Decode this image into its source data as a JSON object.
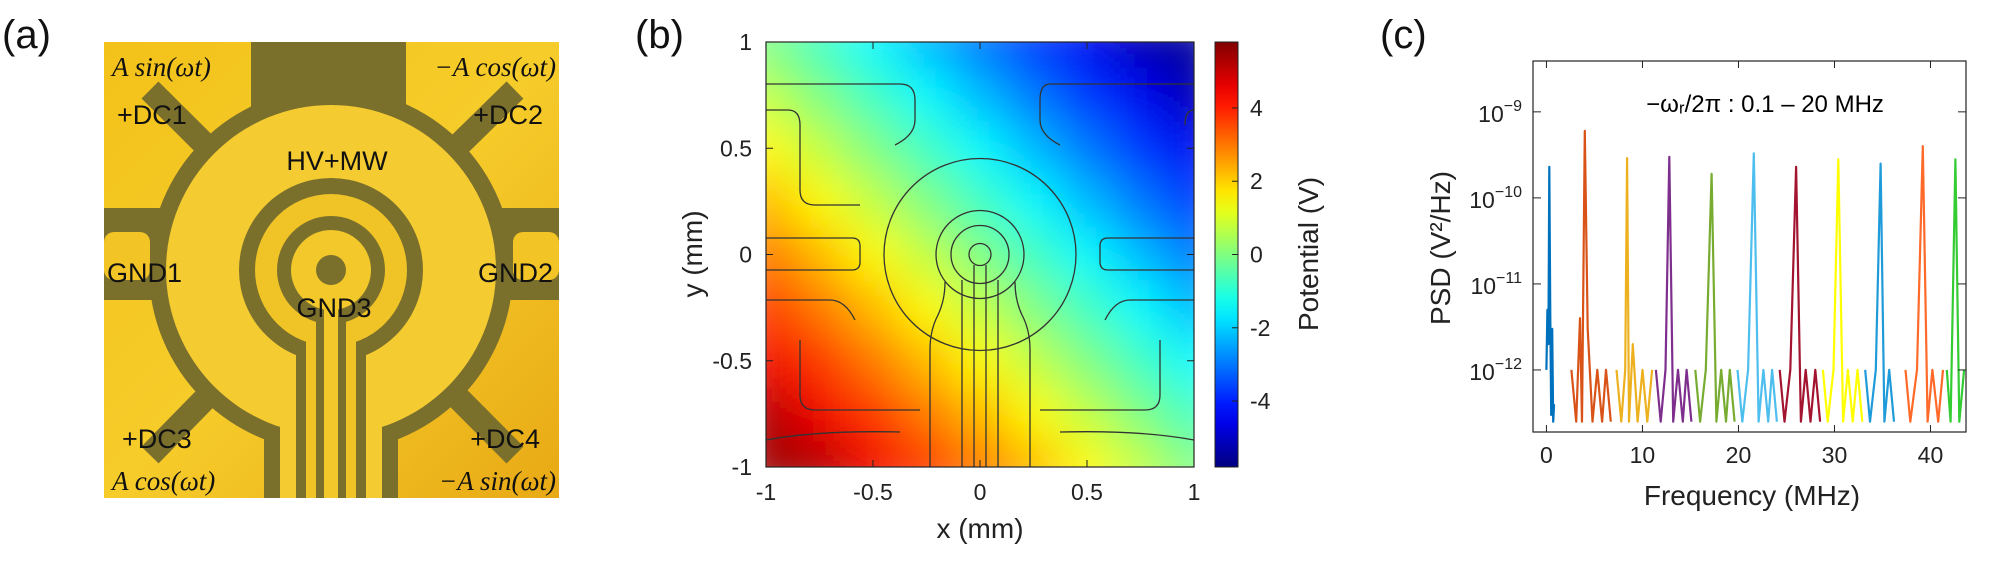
{
  "panel_labels": [
    "(a)",
    "(b)",
    "(c)"
  ],
  "photo": {
    "labels": [
      "A sin(ωt)",
      "−A cos(ωt)",
      "+DC1",
      "+DC2",
      "HV+MW",
      "GND1",
      "GND2",
      "GND3",
      "+DC3",
      "+DC4",
      "A cos(ωt)",
      "−A sin(ωt)"
    ]
  },
  "chart_data": [
    {
      "type": "heatmap",
      "xlabel": "x (mm)",
      "ylabel": "y (mm)",
      "x": [
        -1,
        -0.75,
        -0.5,
        -0.25,
        0,
        0.25,
        0.5,
        0.75,
        1
      ],
      "y": [
        1,
        0.75,
        0.5,
        0.25,
        0,
        -0.25,
        -0.5,
        -0.75,
        -1
      ],
      "z": [
        [
          0,
          -0.75,
          -1.5,
          -2.25,
          -3,
          -3.75,
          -4.5,
          -5.25,
          -5.5
        ],
        [
          0.75,
          0,
          -0.75,
          -1.5,
          -2.25,
          -3,
          -3.75,
          -4.5,
          -5.25
        ],
        [
          1.5,
          0.75,
          0,
          -0.75,
          -1.5,
          -2.25,
          -3,
          -3.75,
          -4.5
        ],
        [
          2.25,
          1.5,
          0.75,
          0,
          -0.75,
          -1.5,
          -2.25,
          -3,
          -3.75
        ],
        [
          3,
          2.25,
          1.5,
          0.75,
          0,
          -0.75,
          -1.5,
          -2.25,
          -3
        ],
        [
          3.75,
          3,
          2.25,
          1.5,
          0.75,
          0,
          -0.75,
          -1.5,
          -2.25
        ],
        [
          4.5,
          3.75,
          3,
          2.25,
          1.5,
          0.75,
          0,
          -0.75,
          -1.5
        ],
        [
          5.25,
          4.5,
          3.75,
          3,
          2.25,
          1.5,
          0.75,
          0,
          -0.75
        ],
        [
          5.5,
          5.25,
          4.5,
          3.75,
          3,
          2.25,
          1.5,
          0.75,
          0
        ]
      ],
      "xlim": [
        -1,
        1
      ],
      "ylim": [
        -1,
        1
      ],
      "xticks": [
        -1,
        -0.5,
        0,
        0.5,
        1
      ],
      "yticks": [
        -1,
        -0.5,
        0,
        0.5,
        1
      ],
      "colorbar": {
        "label": "Potential (V)",
        "clim": [
          -5.8,
          5.8
        ],
        "ticks": [
          -4,
          -2,
          0,
          2,
          4
        ],
        "colormap": "jet"
      }
    },
    {
      "type": "line",
      "xlabel": "Frequency (MHz)",
      "ylabel": "PSD (V²/Hz)",
      "annotation": "−ωᵣ/2π : 0.1 – 20 MHz",
      "log_y": true,
      "xlim": [
        -1.4,
        43.7
      ],
      "ylim": [
        1.9e-13,
        3.9e-09
      ],
      "xticks": [
        0,
        10,
        20,
        30,
        40
      ],
      "yticks": [
        {
          "value": 1e-12,
          "label": "10",
          "exponent": "−12"
        },
        {
          "value": 1e-11,
          "label": "10",
          "exponent": "−11"
        },
        {
          "value": 1e-10,
          "label": "10",
          "exponent": "−10"
        },
        {
          "value": 1e-09,
          "label": "10",
          "exponent": "−9"
        }
      ],
      "series": [
        {
          "color": "#0072BD",
          "x": [
            0,
            0.1,
            0.2,
            0.3,
            0.4,
            0.5,
            0.6,
            0.7,
            0.8
          ],
          "values": [
            1e-12,
            5e-12,
            2e-12,
            2.3e-10,
            4e-12,
            3e-13,
            3e-12,
            2.5e-13,
            4e-13
          ]
        },
        {
          "color": "#D95319",
          "x": [
            2.6,
            3.1,
            3.5,
            3.7,
            4.0,
            4.3,
            4.8,
            5.3,
            5.8,
            6.2,
            6.7
          ],
          "values": [
            1e-12,
            2.5e-13,
            4e-12,
            2.5e-13,
            6e-10,
            3e-12,
            2.5e-13,
            1e-12,
            2.5e-13,
            1e-12,
            2.5e-13
          ]
        },
        {
          "color": "#EDB120",
          "x": [
            7.3,
            7.8,
            8.2,
            8.4,
            8.6,
            9.0,
            9.5,
            10,
            10.5,
            11
          ],
          "values": [
            1e-12,
            2.5e-13,
            1e-12,
            2.9e-10,
            2.5e-13,
            2e-12,
            2.5e-13,
            1e-12,
            2.5e-13,
            1e-12
          ]
        },
        {
          "color": "#7E2F8E",
          "x": [
            11.4,
            11.9,
            12.4,
            12.8,
            13.2,
            13.7,
            14.2,
            14.6,
            15.1
          ],
          "values": [
            1e-12,
            2.5e-13,
            1e-12,
            3e-10,
            2.5e-13,
            1e-12,
            2.5e-13,
            1e-12,
            2.5e-13
          ]
        },
        {
          "color": "#77AC30",
          "x": [
            15.5,
            16,
            16.6,
            17.2,
            17.7,
            18.2,
            18.7,
            19.1,
            19.6
          ],
          "values": [
            1e-12,
            2.5e-13,
            1e-12,
            1.9e-10,
            2.5e-13,
            1e-12,
            2.5e-13,
            1e-12,
            2.5e-13
          ]
        },
        {
          "color": "#4DBEEE",
          "x": [
            19.9,
            20.4,
            21,
            21.6,
            22.1,
            22.6,
            23.1,
            23.5,
            24
          ],
          "values": [
            1e-12,
            2.5e-13,
            1e-12,
            3.3e-10,
            2.5e-13,
            1e-12,
            2.5e-13,
            1e-12,
            2.5e-13
          ]
        },
        {
          "color": "#A2142F",
          "x": [
            24.3,
            24.8,
            25.4,
            26,
            26.5,
            27,
            27.5,
            28,
            28.5
          ],
          "values": [
            1e-12,
            2.5e-13,
            1e-12,
            2.3e-10,
            2.5e-13,
            1e-12,
            2.5e-13,
            1e-12,
            2.5e-13
          ]
        },
        {
          "color": "#FFFF00",
          "x": [
            28.8,
            29.3,
            29.9,
            30.4,
            30.9,
            31.4,
            31.9,
            32.4,
            32.9
          ],
          "values": [
            1e-12,
            2.5e-13,
            1e-12,
            2.8e-10,
            2.5e-13,
            1e-12,
            2.5e-13,
            1e-12,
            2.5e-13
          ]
        },
        {
          "color": "#1F9BDA",
          "x": [
            33.2,
            33.7,
            34.3,
            34.8,
            35.2,
            35.7,
            36.2
          ],
          "values": [
            1e-12,
            2.5e-13,
            1e-12,
            2.5e-10,
            2.5e-13,
            1e-12,
            2.5e-13
          ]
        },
        {
          "color": "#FF6929",
          "x": [
            37.4,
            37.9,
            38.6,
            39.2,
            39.7,
            40.2,
            40.8,
            41.3
          ],
          "values": [
            1e-12,
            2.5e-13,
            1e-12,
            4e-10,
            2.5e-13,
            1e-12,
            2.5e-13,
            1e-12
          ]
        },
        {
          "color": "#33CC33",
          "x": [
            41.7,
            42.1,
            42.6,
            43,
            43.5
          ],
          "values": [
            1e-12,
            2.5e-13,
            2.8e-10,
            2.5e-13,
            1e-12
          ]
        }
      ]
    }
  ]
}
